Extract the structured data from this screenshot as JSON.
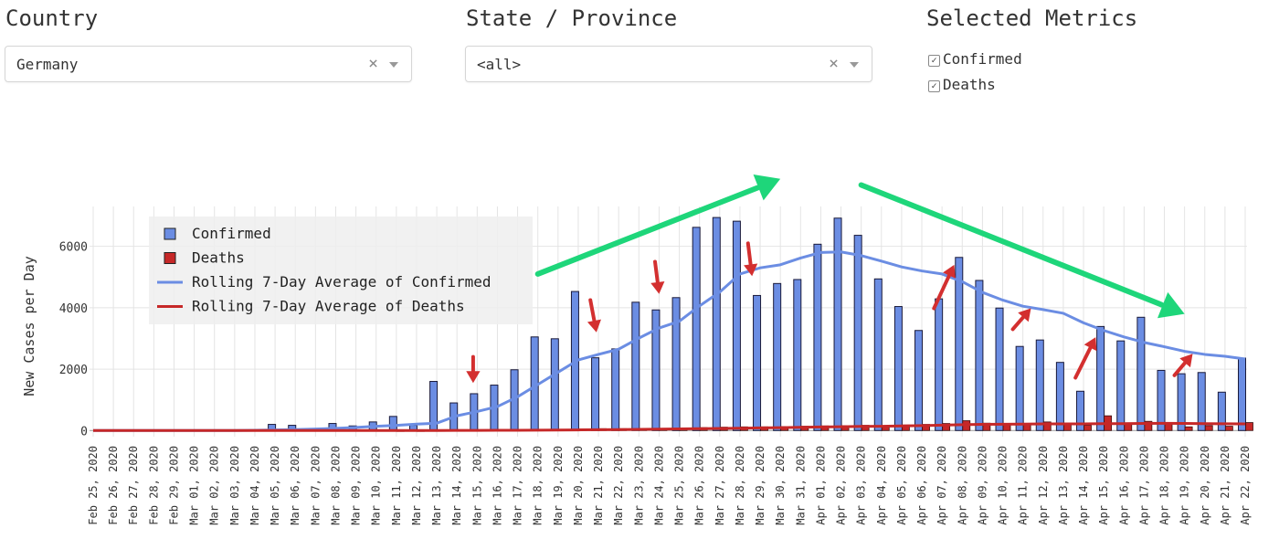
{
  "controls": {
    "country": {
      "label": "Country",
      "value": "Germany",
      "clear_glyph": "×"
    },
    "state": {
      "label": "State / Province",
      "value": "<all>",
      "clear_glyph": "×"
    },
    "metrics": {
      "label": "Selected Metrics",
      "items": [
        {
          "label": "Confirmed",
          "checked": true
        },
        {
          "label": "Deaths",
          "checked": true
        }
      ]
    }
  },
  "chart_data": {
    "type": "bar",
    "ylabel": "New Cases per Day",
    "ylim": [
      -200,
      7300
    ],
    "yticks": [
      0,
      2000,
      4000,
      6000
    ],
    "grid": true,
    "legend_position": "top-left",
    "colors": {
      "confirmed": "#6b8de3",
      "deaths": "#c62828",
      "avg_confirmed": "#6b8de3",
      "avg_deaths": "#c62828",
      "green_arrow": "#1ed67a",
      "red_arrow": "#d32f2f"
    },
    "x": [
      "Feb 25, 2020",
      "Feb 26, 2020",
      "Feb 27, 2020",
      "Feb 28, 2020",
      "Feb 29, 2020",
      "Mar 01, 2020",
      "Mar 02, 2020",
      "Mar 03, 2020",
      "Mar 04, 2020",
      "Mar 05, 2020",
      "Mar 06, 2020",
      "Mar 07, 2020",
      "Mar 08, 2020",
      "Mar 09, 2020",
      "Mar 10, 2020",
      "Mar 11, 2020",
      "Mar 12, 2020",
      "Mar 13, 2020",
      "Mar 14, 2020",
      "Mar 15, 2020",
      "Mar 16, 2020",
      "Mar 17, 2020",
      "Mar 18, 2020",
      "Mar 19, 2020",
      "Mar 20, 2020",
      "Mar 21, 2020",
      "Mar 22, 2020",
      "Mar 23, 2020",
      "Mar 24, 2020",
      "Mar 25, 2020",
      "Mar 26, 2020",
      "Mar 27, 2020",
      "Mar 28, 2020",
      "Mar 29, 2020",
      "Mar 30, 2020",
      "Mar 31, 2020",
      "Apr 01, 2020",
      "Apr 02, 2020",
      "Apr 03, 2020",
      "Apr 04, 2020",
      "Apr 05, 2020",
      "Apr 06, 2020",
      "Apr 07, 2020",
      "Apr 08, 2020",
      "Apr 09, 2020",
      "Apr 10, 2020",
      "Apr 11, 2020",
      "Apr 12, 2020",
      "Apr 13, 2020",
      "Apr 14, 2020",
      "Apr 15, 2020",
      "Apr 16, 2020",
      "Apr 17, 2020",
      "Apr 18, 2020",
      "Apr 19, 2020",
      "Apr 20, 2020",
      "Apr 21, 2020",
      "Apr 22, 2020"
    ],
    "series": [
      {
        "name": "Confirmed",
        "kind": "bar",
        "values": [
          0,
          0,
          0,
          0,
          0,
          0,
          0,
          0,
          0,
          200,
          170,
          60,
          230,
          150,
          280,
          460,
          170,
          1600,
          900,
          1200,
          1480,
          1980,
          3050,
          2990,
          4530,
          2370,
          2660,
          4180,
          3930,
          4330,
          6620,
          6940,
          6820,
          4400,
          4790,
          4920,
          6070,
          6920,
          6360,
          4940,
          4040,
          3260,
          4290,
          5640,
          4890,
          3990,
          2740,
          2950,
          2220,
          1280,
          3390,
          2920,
          3690,
          1960,
          1850,
          1890,
          1250,
          2360
        ]
      },
      {
        "name": "Deaths",
        "kind": "bar",
        "values": [
          0,
          0,
          0,
          0,
          0,
          0,
          0,
          0,
          0,
          0,
          0,
          0,
          0,
          0,
          0,
          2,
          2,
          5,
          5,
          12,
          15,
          25,
          35,
          30,
          55,
          60,
          60,
          65,
          70,
          80,
          95,
          110,
          120,
          120,
          130,
          140,
          150,
          160,
          170,
          160,
          180,
          200,
          230,
          320,
          240,
          220,
          200,
          280,
          190,
          170,
          480,
          250,
          300,
          230,
          120,
          160,
          140,
          260
        ]
      },
      {
        "name": "Rolling 7-Day Average of Confirmed",
        "kind": "line",
        "values": [
          0,
          0,
          0,
          0,
          0,
          0,
          0,
          0,
          10,
          20,
          30,
          50,
          70,
          100,
          140,
          170,
          210,
          240,
          480,
          620,
          780,
          1100,
          1500,
          1900,
          2300,
          2480,
          2650,
          3010,
          3340,
          3560,
          4060,
          4510,
          5100,
          5300,
          5400,
          5620,
          5800,
          5820,
          5700,
          5520,
          5330,
          5200,
          5100,
          4850,
          4500,
          4250,
          4050,
          3940,
          3820,
          3510,
          3260,
          3050,
          2870,
          2730,
          2580,
          2480,
          2420,
          2330
        ]
      },
      {
        "name": "Rolling 7-Day Average of Deaths",
        "kind": "line",
        "values": [
          0,
          0,
          0,
          0,
          0,
          0,
          0,
          0,
          0,
          0,
          0,
          0,
          0,
          0,
          0,
          0,
          1,
          2,
          3,
          5,
          7,
          10,
          13,
          17,
          21,
          27,
          32,
          38,
          45,
          52,
          60,
          68,
          77,
          85,
          95,
          105,
          115,
          125,
          135,
          140,
          150,
          160,
          175,
          190,
          200,
          205,
          210,
          215,
          215,
          215,
          225,
          225,
          230,
          235,
          230,
          225,
          220,
          215
        ]
      }
    ]
  },
  "annotations": {
    "green_arrows": [
      {
        "from": [
          22,
          5100
        ],
        "to": [
          34,
          8200
        ]
      },
      {
        "from": [
          38,
          8000
        ],
        "to": [
          54,
          3800
        ]
      }
    ],
    "red_arrows": [
      {
        "from": [
          18.8,
          2400
        ],
        "to": [
          18.8,
          1550
        ]
      },
      {
        "from": [
          24.6,
          4250
        ],
        "to": [
          24.9,
          3200
        ]
      },
      {
        "from": [
          27.8,
          5500
        ],
        "to": [
          28.0,
          4450
        ]
      },
      {
        "from": [
          32.4,
          6100
        ],
        "to": [
          32.6,
          5030
        ]
      },
      {
        "from": [
          41.6,
          3980
        ],
        "to": [
          42.6,
          5400
        ]
      },
      {
        "from": [
          45.5,
          3300
        ],
        "to": [
          46.4,
          3980
        ]
      },
      {
        "from": [
          48.6,
          1720
        ],
        "to": [
          49.6,
          3040
        ]
      },
      {
        "from": [
          53.5,
          1800
        ],
        "to": [
          54.4,
          2500
        ]
      }
    ]
  }
}
